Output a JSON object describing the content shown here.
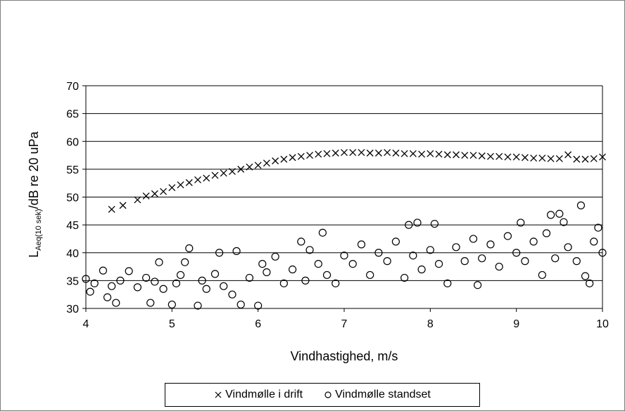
{
  "chart_data": {
    "type": "scatter",
    "title": "",
    "xlabel": "Vindhastighed, m/s",
    "ylabel": {
      "main": "L",
      "sub": "Aeq(10 sek)",
      "rest": "/dB re 20 uPa"
    },
    "xlim": [
      4,
      10
    ],
    "ylim": [
      30,
      70
    ],
    "x_ticks": [
      4,
      5,
      6,
      7,
      8,
      9,
      10
    ],
    "y_ticks": [
      30,
      35,
      40,
      45,
      50,
      55,
      60,
      65,
      70
    ],
    "grid": "horizontal",
    "legend_position": "bottom",
    "series": [
      {
        "name": "Vindmølle i drift",
        "marker": "x",
        "color": "#000000",
        "points": [
          [
            4.3,
            47.8
          ],
          [
            4.43,
            48.5
          ],
          [
            4.6,
            49.5
          ],
          [
            4.7,
            50.2
          ],
          [
            4.8,
            50.6
          ],
          [
            4.9,
            51.0
          ],
          [
            5.0,
            51.7
          ],
          [
            5.1,
            52.2
          ],
          [
            5.2,
            52.6
          ],
          [
            5.3,
            53.1
          ],
          [
            5.4,
            53.4
          ],
          [
            5.5,
            53.9
          ],
          [
            5.6,
            54.3
          ],
          [
            5.7,
            54.6
          ],
          [
            5.8,
            55.0
          ],
          [
            5.9,
            55.4
          ],
          [
            6.0,
            55.7
          ],
          [
            6.1,
            56.1
          ],
          [
            6.2,
            56.5
          ],
          [
            6.3,
            56.8
          ],
          [
            6.4,
            57.1
          ],
          [
            6.5,
            57.3
          ],
          [
            6.6,
            57.5
          ],
          [
            6.7,
            57.7
          ],
          [
            6.8,
            57.8
          ],
          [
            6.9,
            57.9
          ],
          [
            7.0,
            58.0
          ],
          [
            7.1,
            58.0
          ],
          [
            7.2,
            58.0
          ],
          [
            7.3,
            57.9
          ],
          [
            7.4,
            57.9
          ],
          [
            7.5,
            58.0
          ],
          [
            7.6,
            57.9
          ],
          [
            7.7,
            57.8
          ],
          [
            7.8,
            57.8
          ],
          [
            7.9,
            57.7
          ],
          [
            8.0,
            57.8
          ],
          [
            8.1,
            57.7
          ],
          [
            8.2,
            57.6
          ],
          [
            8.3,
            57.6
          ],
          [
            8.4,
            57.5
          ],
          [
            8.5,
            57.5
          ],
          [
            8.6,
            57.4
          ],
          [
            8.7,
            57.3
          ],
          [
            8.8,
            57.3
          ],
          [
            8.9,
            57.2
          ],
          [
            9.0,
            57.2
          ],
          [
            9.1,
            57.1
          ],
          [
            9.2,
            57.0
          ],
          [
            9.3,
            57.0
          ],
          [
            9.4,
            56.9
          ],
          [
            9.5,
            56.9
          ],
          [
            9.6,
            57.6
          ],
          [
            9.7,
            56.8
          ],
          [
            9.8,
            56.8
          ],
          [
            9.9,
            56.9
          ],
          [
            10.0,
            57.2
          ]
        ]
      },
      {
        "name": "Vindmølle standset",
        "marker": "o",
        "color": "#000000",
        "points": [
          [
            4.0,
            35.3
          ],
          [
            4.05,
            33.0
          ],
          [
            4.1,
            34.5
          ],
          [
            4.2,
            36.8
          ],
          [
            4.25,
            32.0
          ],
          [
            4.3,
            34.0
          ],
          [
            4.35,
            31.0
          ],
          [
            4.4,
            35.0
          ],
          [
            4.5,
            36.7
          ],
          [
            4.6,
            33.8
          ],
          [
            4.7,
            35.5
          ],
          [
            4.75,
            31.0
          ],
          [
            4.8,
            34.8
          ],
          [
            4.85,
            38.3
          ],
          [
            4.9,
            33.5
          ],
          [
            5.0,
            30.7
          ],
          [
            5.05,
            34.5
          ],
          [
            5.1,
            36.0
          ],
          [
            5.15,
            38.3
          ],
          [
            5.2,
            40.8
          ],
          [
            5.3,
            30.5
          ],
          [
            5.35,
            35.0
          ],
          [
            5.4,
            33.5
          ],
          [
            5.5,
            36.2
          ],
          [
            5.55,
            40.0
          ],
          [
            5.6,
            34.0
          ],
          [
            5.7,
            32.5
          ],
          [
            5.75,
            40.3
          ],
          [
            5.8,
            30.7
          ],
          [
            5.9,
            35.5
          ],
          [
            6.0,
            30.5
          ],
          [
            6.05,
            38.0
          ],
          [
            6.1,
            36.5
          ],
          [
            6.2,
            39.3
          ],
          [
            6.3,
            34.5
          ],
          [
            6.4,
            37.0
          ],
          [
            6.5,
            42.0
          ],
          [
            6.55,
            35.0
          ],
          [
            6.6,
            40.5
          ],
          [
            6.7,
            38.0
          ],
          [
            6.75,
            43.6
          ],
          [
            6.8,
            36.0
          ],
          [
            6.9,
            34.5
          ],
          [
            7.0,
            39.5
          ],
          [
            7.1,
            38.0
          ],
          [
            7.2,
            41.5
          ],
          [
            7.3,
            36.0
          ],
          [
            7.4,
            40.0
          ],
          [
            7.5,
            38.5
          ],
          [
            7.6,
            42.0
          ],
          [
            7.7,
            35.5
          ],
          [
            7.75,
            45.0
          ],
          [
            7.8,
            39.5
          ],
          [
            7.85,
            45.4
          ],
          [
            7.9,
            37.0
          ],
          [
            8.0,
            40.5
          ],
          [
            8.05,
            45.2
          ],
          [
            8.1,
            38.0
          ],
          [
            8.2,
            34.5
          ],
          [
            8.3,
            41.0
          ],
          [
            8.4,
            38.5
          ],
          [
            8.5,
            42.5
          ],
          [
            8.55,
            34.2
          ],
          [
            8.6,
            39.0
          ],
          [
            8.7,
            41.5
          ],
          [
            8.8,
            37.5
          ],
          [
            8.9,
            43.0
          ],
          [
            9.0,
            40.0
          ],
          [
            9.05,
            45.4
          ],
          [
            9.1,
            38.5
          ],
          [
            9.2,
            42.0
          ],
          [
            9.3,
            36.0
          ],
          [
            9.35,
            43.5
          ],
          [
            9.4,
            46.8
          ],
          [
            9.45,
            39.0
          ],
          [
            9.5,
            47.0
          ],
          [
            9.55,
            45.5
          ],
          [
            9.6,
            41.0
          ],
          [
            9.7,
            38.5
          ],
          [
            9.75,
            48.5
          ],
          [
            9.8,
            35.8
          ],
          [
            9.85,
            34.5
          ],
          [
            9.9,
            42.0
          ],
          [
            9.95,
            44.5
          ],
          [
            10.0,
            40.0
          ]
        ]
      }
    ]
  }
}
